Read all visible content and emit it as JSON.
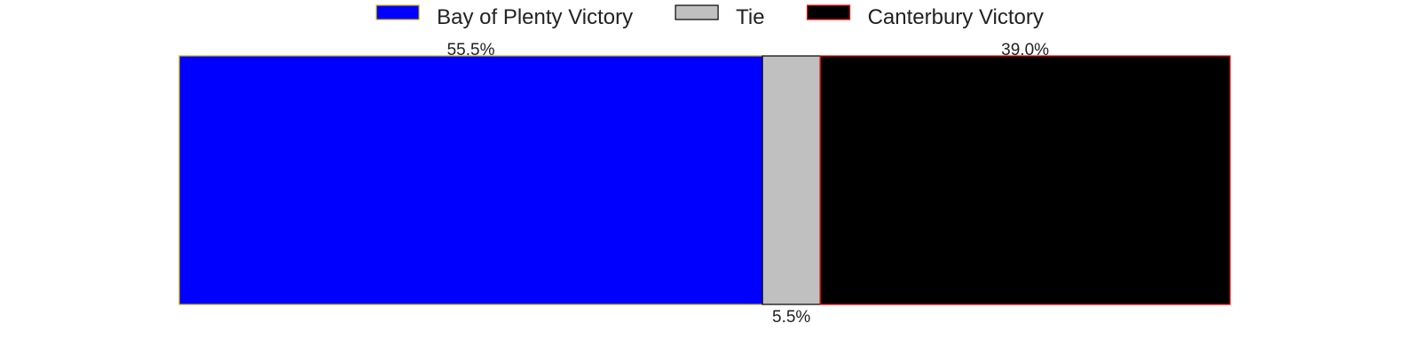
{
  "chart_data": {
    "type": "bar",
    "orientation": "horizontal-stacked",
    "title": "",
    "xlabel": "",
    "ylabel": "",
    "xlim": [
      0,
      100
    ],
    "grid": false,
    "legend_position": "top-center",
    "series": [
      {
        "name": "Bay of Plenty Victory",
        "value": 55.5,
        "label": "55.5%",
        "color": "#0000ff",
        "edge": "#c8b400",
        "label_position": "above"
      },
      {
        "name": "Tie",
        "value": 5.5,
        "label": "5.5%",
        "color": "#c0c0c0",
        "edge": "#000000",
        "label_position": "below"
      },
      {
        "name": "Canterbury Victory",
        "value": 39.0,
        "label": "39.0%",
        "color": "#000000",
        "edge": "#ff0000",
        "label_position": "above"
      }
    ]
  }
}
